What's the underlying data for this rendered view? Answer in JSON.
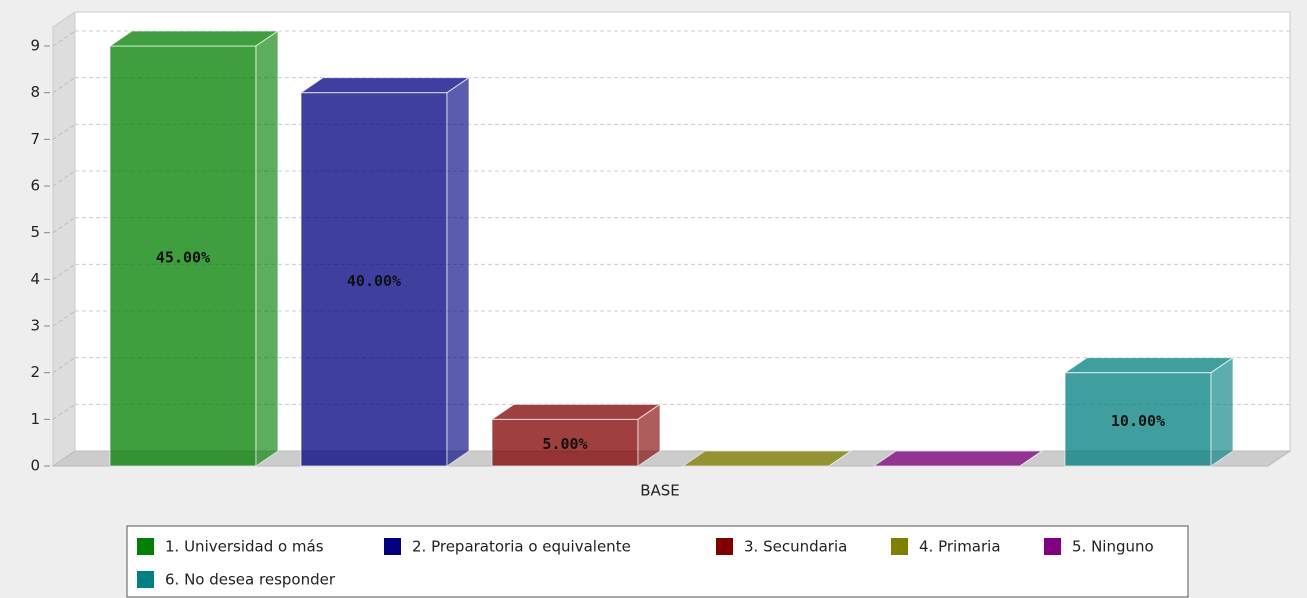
{
  "chart_data": {
    "type": "bar3d",
    "categories": [
      "BASE"
    ],
    "ylim": [
      0,
      9
    ],
    "yticks": [
      0,
      1,
      2,
      3,
      4,
      5,
      6,
      7,
      8,
      9
    ],
    "grid": true,
    "series": [
      {
        "name": "1. Universidad o más",
        "color": "#008000",
        "values": [
          9
        ],
        "labels": [
          "45.00%"
        ]
      },
      {
        "name": "2. Preparatoria o equivalente",
        "color": "#000080",
        "values": [
          8
        ],
        "labels": [
          "40.00%"
        ]
      },
      {
        "name": "3. Secundaria",
        "color": "#800000",
        "values": [
          1
        ],
        "labels": [
          "5.00%"
        ]
      },
      {
        "name": "4. Primaria",
        "color": "#808000",
        "values": [
          0
        ],
        "labels": [
          null
        ]
      },
      {
        "name": "5. Ninguno",
        "color": "#800080",
        "values": [
          0
        ],
        "labels": [
          null
        ]
      },
      {
        "name": "6. No desea responder",
        "color": "#008080",
        "values": [
          2
        ],
        "labels": [
          "10.00%"
        ]
      }
    ],
    "legend": "bottom"
  }
}
